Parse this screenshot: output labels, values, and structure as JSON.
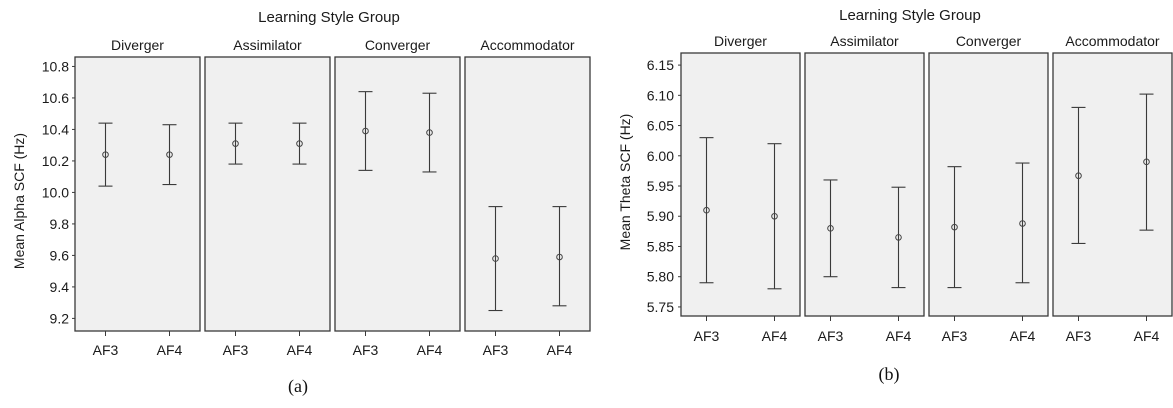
{
  "chart_data": [
    {
      "type": "errorbar",
      "caption": "(a)",
      "title": "Learning Style Group",
      "ylabel": "Mean Alpha SCF (Hz)",
      "xlabel": "",
      "ylim": [
        9.12,
        10.86
      ],
      "yticks": [
        "9.2",
        "9.4",
        "9.6",
        "9.8",
        "10.0",
        "10.2",
        "10.4",
        "10.6",
        "10.8"
      ],
      "categories": [
        "AF3",
        "AF4"
      ],
      "panels": [
        {
          "name": "Diverger",
          "points": [
            {
              "x": "AF3",
              "mean": 10.24,
              "low": 10.04,
              "high": 10.44
            },
            {
              "x": "AF4",
              "mean": 10.24,
              "low": 10.05,
              "high": 10.43
            }
          ]
        },
        {
          "name": "Assimilator",
          "points": [
            {
              "x": "AF3",
              "mean": 10.31,
              "low": 10.18,
              "high": 10.44
            },
            {
              "x": "AF4",
              "mean": 10.31,
              "low": 10.18,
              "high": 10.44
            }
          ]
        },
        {
          "name": "Converger",
          "points": [
            {
              "x": "AF3",
              "mean": 10.39,
              "low": 10.14,
              "high": 10.64
            },
            {
              "x": "AF4",
              "mean": 10.38,
              "low": 10.13,
              "high": 10.63
            }
          ]
        },
        {
          "name": "Accommodator",
          "points": [
            {
              "x": "AF3",
              "mean": 9.58,
              "low": 9.25,
              "high": 9.91
            },
            {
              "x": "AF4",
              "mean": 9.59,
              "low": 9.28,
              "high": 9.91
            }
          ]
        }
      ]
    },
    {
      "type": "errorbar",
      "caption": "(b)",
      "title": "Learning Style Group",
      "ylabel": "Mean Theta SCF (Hz)",
      "xlabel": "",
      "ylim": [
        5.735,
        6.17
      ],
      "yticks": [
        "5.75",
        "5.80",
        "5.85",
        "5.90",
        "5.95",
        "6.00",
        "6.05",
        "6.10",
        "6.15"
      ],
      "categories": [
        "AF3",
        "AF4"
      ],
      "panels": [
        {
          "name": "Diverger",
          "points": [
            {
              "x": "AF3",
              "mean": 5.91,
              "low": 5.79,
              "high": 6.03
            },
            {
              "x": "AF4",
              "mean": 5.9,
              "low": 5.78,
              "high": 6.02
            }
          ]
        },
        {
          "name": "Assimilator",
          "points": [
            {
              "x": "AF3",
              "mean": 5.88,
              "low": 5.8,
              "high": 5.96
            },
            {
              "x": "AF4",
              "mean": 5.865,
              "low": 5.782,
              "high": 5.948
            }
          ]
        },
        {
          "name": "Converger",
          "points": [
            {
              "x": "AF3",
              "mean": 5.882,
              "low": 5.782,
              "high": 5.982
            },
            {
              "x": "AF4",
              "mean": 5.888,
              "low": 5.79,
              "high": 5.988
            }
          ]
        },
        {
          "name": "Accommodator",
          "points": [
            {
              "x": "AF3",
              "mean": 5.967,
              "low": 5.855,
              "high": 6.08
            },
            {
              "x": "AF4",
              "mean": 5.99,
              "low": 5.877,
              "high": 6.102
            }
          ]
        }
      ]
    }
  ]
}
